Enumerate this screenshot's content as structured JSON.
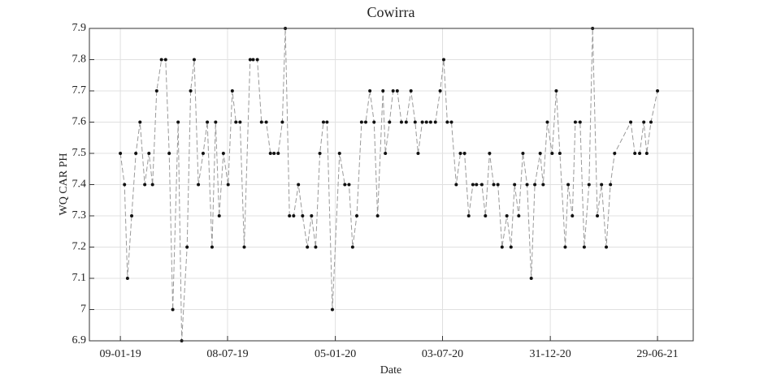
{
  "chart_data": {
    "type": "line",
    "title": "Cowirra",
    "x_label": "Date",
    "y_label": "WQ CAR PH",
    "line_color": "#9a9a9a",
    "marker_color": "#111111",
    "grid": true,
    "xlim": [
      "2018-11-18",
      "2021-08-28"
    ],
    "ylim": [
      6.9,
      7.9
    ],
    "xticks": [
      {
        "value": "2019-01-09",
        "label": "09-01-19"
      },
      {
        "value": "2019-07-08",
        "label": "08-07-19"
      },
      {
        "value": "2020-01-05",
        "label": "05-01-20"
      },
      {
        "value": "2020-07-03",
        "label": "03-07-20"
      },
      {
        "value": "2020-12-31",
        "label": "31-12-20"
      },
      {
        "value": "2021-06-29",
        "label": "29-06-21"
      }
    ],
    "yticks": [
      6.9,
      7,
      7.1,
      7.2,
      7.3,
      7.4,
      7.5,
      7.6,
      7.7,
      7.8,
      7.9
    ],
    "x": [
      "2019-01-09",
      "2019-01-16",
      "2019-01-21",
      "2019-01-28",
      "2019-02-04",
      "2019-02-11",
      "2019-02-19",
      "2019-02-26",
      "2019-03-04",
      "2019-03-11",
      "2019-03-19",
      "2019-03-26",
      "2019-04-01",
      "2019-04-07",
      "2019-04-16",
      "2019-04-22",
      "2019-05-01",
      "2019-05-07",
      "2019-05-13",
      "2019-05-20",
      "2019-05-28",
      "2019-06-04",
      "2019-06-12",
      "2019-06-18",
      "2019-06-24",
      "2019-07-01",
      "2019-07-09",
      "2019-07-16",
      "2019-07-22",
      "2019-07-29",
      "2019-08-05",
      "2019-08-15",
      "2019-08-20",
      "2019-08-27",
      "2019-09-03",
      "2019-09-11",
      "2019-09-18",
      "2019-09-24",
      "2019-10-01",
      "2019-10-08",
      "2019-10-13",
      "2019-10-20",
      "2019-10-27",
      "2019-11-04",
      "2019-11-11",
      "2019-11-19",
      "2019-11-26",
      "2019-12-03",
      "2019-12-10",
      "2019-12-16",
      "2019-12-22",
      "2019-12-31",
      "2020-01-12",
      "2020-01-21",
      "2020-01-28",
      "2020-02-03",
      "2020-02-10",
      "2020-02-18",
      "2020-02-25",
      "2020-03-03",
      "2020-03-10",
      "2020-03-16",
      "2020-03-25",
      "2020-03-29",
      "2020-04-05",
      "2020-04-11",
      "2020-04-18",
      "2020-04-25",
      "2020-05-03",
      "2020-05-11",
      "2020-05-18",
      "2020-05-23",
      "2020-05-30",
      "2020-06-06",
      "2020-06-13",
      "2020-06-21",
      "2020-06-29",
      "2020-07-05",
      "2020-07-11",
      "2020-07-18",
      "2020-07-26",
      "2020-08-02",
      "2020-08-09",
      "2020-08-16",
      "2020-08-23",
      "2020-08-29",
      "2020-09-07",
      "2020-09-13",
      "2020-09-20",
      "2020-09-27",
      "2020-10-04",
      "2020-10-11",
      "2020-10-19",
      "2020-10-26",
      "2020-11-01",
      "2020-11-08",
      "2020-11-15",
      "2020-11-22",
      "2020-11-29",
      "2020-12-05",
      "2020-12-14",
      "2020-12-19",
      "2020-12-26",
      "2021-01-03",
      "2021-01-10",
      "2021-01-16",
      "2021-01-25",
      "2021-01-30",
      "2021-02-06",
      "2021-02-11",
      "2021-02-19",
      "2021-02-26",
      "2021-03-06",
      "2021-03-12",
      "2021-03-20",
      "2021-03-27",
      "2021-04-04",
      "2021-04-11",
      "2021-04-18",
      "2021-05-15",
      "2021-05-22",
      "2021-05-30",
      "2021-06-06",
      "2021-06-11",
      "2021-06-18",
      "2021-06-29"
    ],
    "values": [
      7.5,
      7.4,
      7.1,
      7.3,
      7.5,
      7.6,
      7.4,
      7.5,
      7.4,
      7.7,
      7.8,
      7.8,
      7.5,
      7.0,
      7.6,
      6.9,
      7.2,
      7.7,
      7.8,
      7.4,
      7.5,
      7.6,
      7.2,
      7.6,
      7.3,
      7.5,
      7.4,
      7.7,
      7.6,
      7.6,
      7.2,
      7.8,
      7.8,
      7.8,
      7.6,
      7.6,
      7.5,
      7.5,
      7.5,
      7.6,
      7.9,
      7.3,
      7.3,
      7.4,
      7.3,
      7.2,
      7.3,
      7.2,
      7.5,
      7.6,
      7.6,
      7.0,
      7.5,
      7.4,
      7.4,
      7.2,
      7.3,
      7.6,
      7.6,
      7.7,
      7.6,
      7.3,
      7.7,
      7.5,
      7.6,
      7.7,
      7.7,
      7.6,
      7.6,
      7.7,
      7.6,
      7.5,
      7.6,
      7.6,
      7.6,
      7.6,
      7.7,
      7.8,
      7.6,
      7.6,
      7.4,
      7.5,
      7.5,
      7.3,
      7.4,
      7.4,
      7.4,
      7.3,
      7.5,
      7.4,
      7.4,
      7.2,
      7.3,
      7.2,
      7.4,
      7.3,
      7.5,
      7.4,
      7.1,
      7.4,
      7.5,
      7.4,
      7.6,
      7.5,
      7.7,
      7.5,
      7.2,
      7.4,
      7.3,
      7.6,
      7.6,
      7.2,
      7.4,
      7.9,
      7.3,
      7.4,
      7.2,
      7.4,
      7.5,
      7.6,
      7.5,
      7.5,
      7.6,
      7.5,
      7.6,
      7.7
    ]
  }
}
